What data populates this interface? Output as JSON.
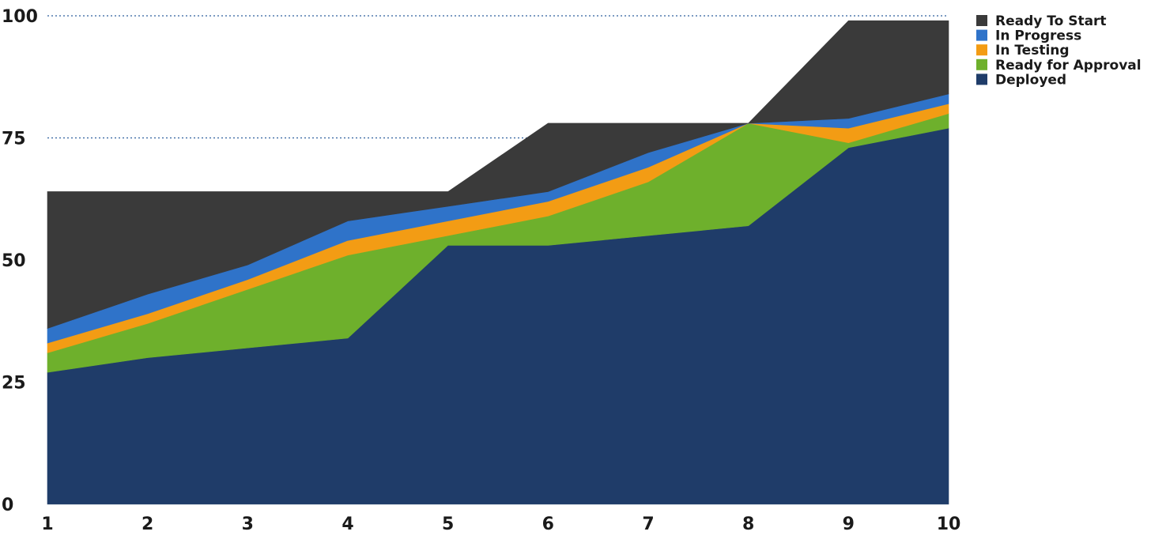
{
  "chart_data": {
    "type": "area",
    "stacked": true,
    "x": [
      1,
      2,
      3,
      4,
      5,
      6,
      7,
      8,
      9,
      10
    ],
    "ylim": [
      0,
      100
    ],
    "yticks": [
      0,
      25,
      50,
      75,
      100
    ],
    "dashed_gridlines": [
      75,
      100
    ],
    "legend_position": "top-right",
    "series": [
      {
        "name": "Deployed",
        "color": "#1f3c69",
        "values": [
          27,
          30,
          32,
          34,
          53,
          53,
          55,
          57,
          73,
          77
        ]
      },
      {
        "name": "Ready for Approval",
        "color": "#6eb02c",
        "values": [
          4,
          7,
          12,
          17,
          2,
          6,
          11,
          21,
          1,
          3
        ]
      },
      {
        "name": "In Testing",
        "color": "#f39c14",
        "values": [
          2,
          2,
          2,
          3,
          3,
          3,
          3,
          0,
          3,
          2
        ]
      },
      {
        "name": "In Progress",
        "color": "#2f73c9",
        "values": [
          3,
          4,
          3,
          4,
          3,
          2,
          3,
          0,
          2,
          2
        ]
      },
      {
        "name": "Ready To Start",
        "color": "#3a3a3a",
        "values": [
          28,
          21,
          15,
          6,
          3,
          14,
          6,
          0,
          20,
          15
        ]
      }
    ],
    "legend_order": [
      "Ready To Start",
      "In Progress",
      "In Testing",
      "Ready for Approval",
      "Deployed"
    ]
  }
}
